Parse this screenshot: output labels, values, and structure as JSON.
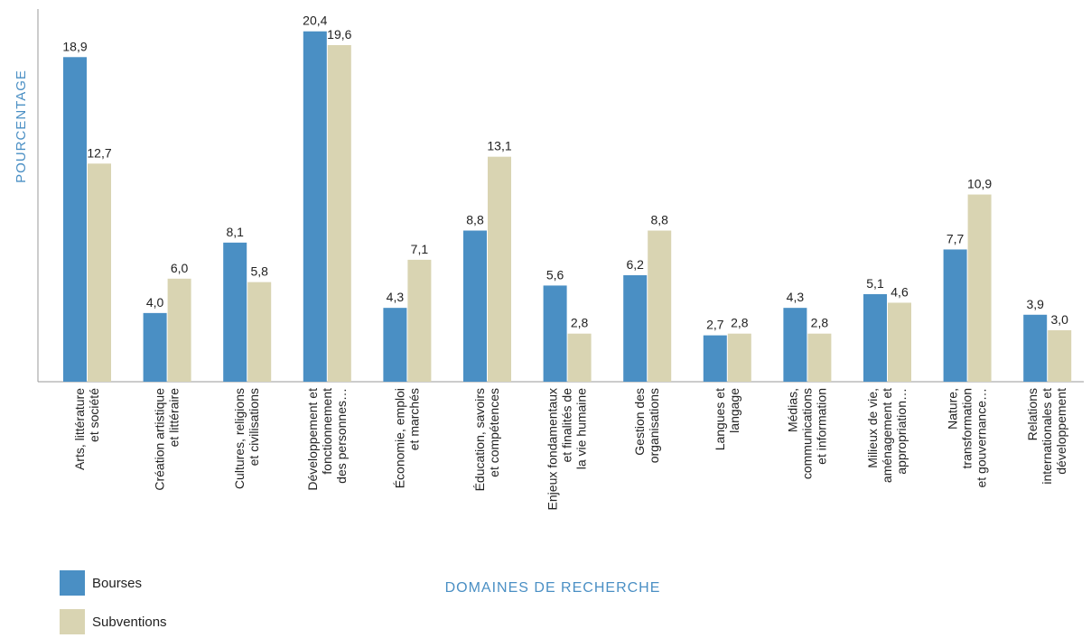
{
  "chart_data": {
    "type": "bar",
    "x_label": "DOMAINES DE RECHERCHE",
    "y_label": "POURCENTAGE",
    "categories": [
      "Arts, littérature\net société",
      "Création artistique\net littéraire",
      "Cultures, religions\net civilisations",
      "Développement et\nfonctionnement\ndes personnes…",
      "Économie, emploi\net marchés",
      "Éducation, savoirs\net compétences",
      "Enjeux fondamentaux\net finalités de\nla vie humaine",
      "Gestion des\norganisations",
      "Langues et\nlangage",
      "Médias,\ncommunications\net information",
      "Milieux de vie,\naménagement et\nappropriation…",
      "Nature,\ntransformation\net gouvernance…",
      "Relations\ninternationales et\ndéveloppement"
    ],
    "series": [
      {
        "name": "Bourses",
        "color": "#4a8fc4",
        "values": [
          18.9,
          4.0,
          8.1,
          20.4,
          4.3,
          8.8,
          5.6,
          6.2,
          2.7,
          4.3,
          5.1,
          7.7,
          3.9
        ],
        "value_labels": [
          "18,9",
          "4,0",
          "8,1",
          "20,4",
          "4,3",
          "8,8",
          "5,6",
          "6,2",
          "2,7",
          "4,3",
          "5,1",
          "7,7",
          "3,9"
        ]
      },
      {
        "name": "Subventions",
        "color": "#d9d4b2",
        "values": [
          12.7,
          6.0,
          5.8,
          19.6,
          7.1,
          13.1,
          2.8,
          8.8,
          2.8,
          2.8,
          4.6,
          10.9,
          3.0
        ],
        "value_labels": [
          "12,7",
          "6,0",
          "5,8",
          "19,6",
          "7,1",
          "13,1",
          "2,8",
          "8,8",
          "2,8",
          "2,8",
          "4,6",
          "10,9",
          "3,0"
        ]
      }
    ],
    "ylim": [
      0,
      21.7
    ]
  }
}
